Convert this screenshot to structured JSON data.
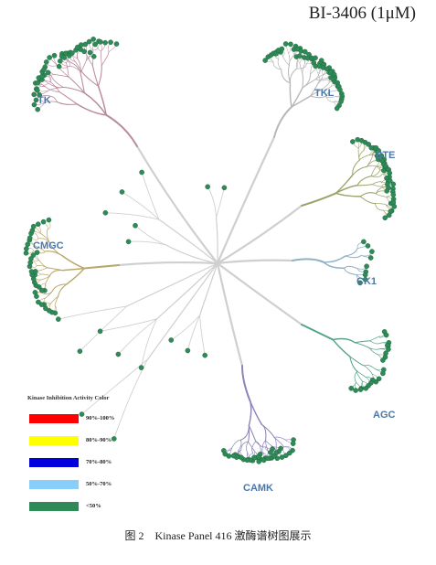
{
  "title": "BI-3406 (1μM)",
  "groups": [
    {
      "id": "tk",
      "label": "TK",
      "color": "#b9899d"
    },
    {
      "id": "tkl",
      "label": "TKL",
      "color": "#b8b8b8"
    },
    {
      "id": "ste",
      "label": "STE",
      "color": "#9da46a"
    },
    {
      "id": "ck1",
      "label": "CK1",
      "color": "#8fb1c6"
    },
    {
      "id": "agc",
      "label": "AGC",
      "color": "#55a38c"
    },
    {
      "id": "camk",
      "label": "CAMK",
      "color": "#8b86b8"
    },
    {
      "id": "cmgc",
      "label": "CMGC",
      "color": "#b8a86a"
    }
  ],
  "legend": {
    "title": "Kinase Inhibition Activity Color",
    "items": [
      {
        "label": "90%-100%",
        "color": "#ff0000"
      },
      {
        "label": "80%-90%",
        "color": "#ffff00"
      },
      {
        "label": "70%-80%",
        "color": "#0000dd"
      },
      {
        "label": "50%-70%",
        "color": "#87cefa"
      },
      {
        "label": "<50%",
        "color": "#2e8b57"
      }
    ]
  },
  "dot_color": "#2e8b57",
  "caption": "图 2　Kinase Panel 416 激酶谱树图展示"
}
